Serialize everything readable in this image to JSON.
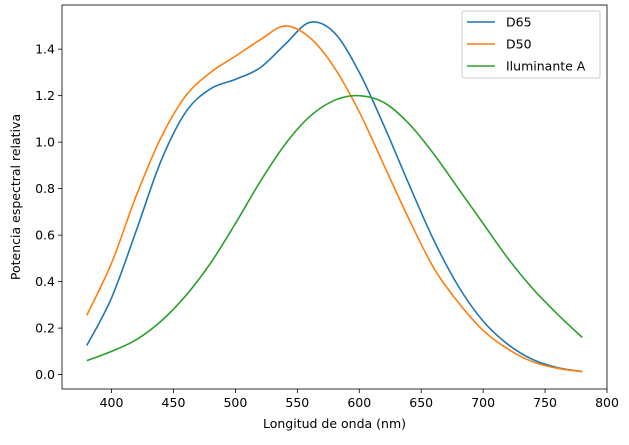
{
  "chart_data": {
    "type": "line",
    "title": "",
    "xlabel": "Longitud de onda (nm)",
    "ylabel": "Potencia espectral relativa",
    "xlim": [
      360,
      800
    ],
    "ylim": [
      -0.062,
      1.59
    ],
    "xticks": [
      400,
      450,
      500,
      550,
      600,
      650,
      700,
      750,
      800
    ],
    "yticks": [
      0.0,
      0.2,
      0.4,
      0.6,
      0.8,
      1.0,
      1.2,
      1.4
    ],
    "grid": false,
    "legend": "top-right",
    "x": [
      380,
      400,
      420,
      440,
      460,
      480,
      500,
      520,
      540,
      560,
      580,
      600,
      620,
      640,
      660,
      680,
      700,
      720,
      740,
      760,
      780
    ],
    "series": [
      {
        "name": "D65",
        "color": "#1f77b4",
        "values": [
          0.125,
          0.33,
          0.62,
          0.92,
          1.13,
          1.23,
          1.27,
          1.32,
          1.42,
          1.515,
          1.47,
          1.3,
          1.07,
          0.82,
          0.58,
          0.38,
          0.23,
          0.13,
          0.065,
          0.03,
          0.013
        ]
      },
      {
        "name": "D50",
        "color": "#ff7f0e",
        "values": [
          0.255,
          0.48,
          0.77,
          1.02,
          1.2,
          1.3,
          1.37,
          1.44,
          1.5,
          1.45,
          1.32,
          1.13,
          0.9,
          0.67,
          0.46,
          0.31,
          0.19,
          0.11,
          0.055,
          0.027,
          0.013
        ]
      },
      {
        "name": "Iluminante A",
        "color": "#2ca02c",
        "values": [
          0.06,
          0.1,
          0.15,
          0.23,
          0.34,
          0.48,
          0.65,
          0.83,
          0.99,
          1.11,
          1.18,
          1.2,
          1.17,
          1.08,
          0.95,
          0.8,
          0.65,
          0.5,
          0.37,
          0.26,
          0.16
        ]
      }
    ]
  }
}
